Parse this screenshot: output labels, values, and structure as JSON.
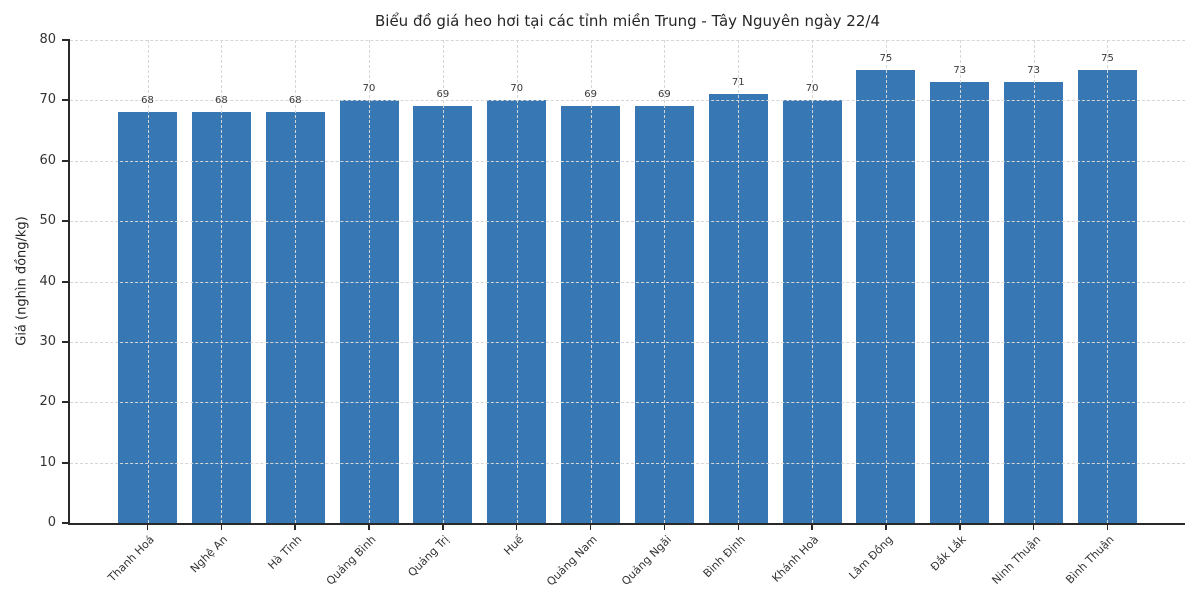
{
  "chart_data": {
    "type": "bar",
    "title": "Biểu đồ giá heo hơi tại các tỉnh miền Trung - Tây Nguyên ngày 22/4",
    "xlabel": "",
    "ylabel": "Giá (nghìn đồng/kg)",
    "categories": [
      "Thanh Hoá",
      "Nghệ An",
      "Hà Tĩnh",
      "Quảng Bình",
      "Quảng Trị",
      "Huế",
      "Quảng Nam",
      "Quảng Ngãi",
      "Bình Định",
      "Khánh Hoà",
      "Lâm Đồng",
      "Đắk Lắk",
      "Ninh Thuận",
      "Bình Thuận"
    ],
    "values": [
      68,
      68,
      68,
      70,
      69,
      70,
      69,
      69,
      71,
      70,
      75,
      73,
      73,
      75
    ],
    "yticks": [
      0,
      10,
      20,
      30,
      40,
      50,
      60,
      70,
      80
    ],
    "ylim": [
      0,
      80
    ],
    "grid": "dashed-both-axes",
    "bar_value_labels": true,
    "legend": null,
    "colors": {
      "background": "#ffffff",
      "bar": "#3778b4",
      "grid": "#d6d6d6",
      "spine": "#2a2a2a",
      "title_text": "#262626",
      "tick_text": "#333333",
      "value_label_text": "#3a3a3a"
    }
  }
}
